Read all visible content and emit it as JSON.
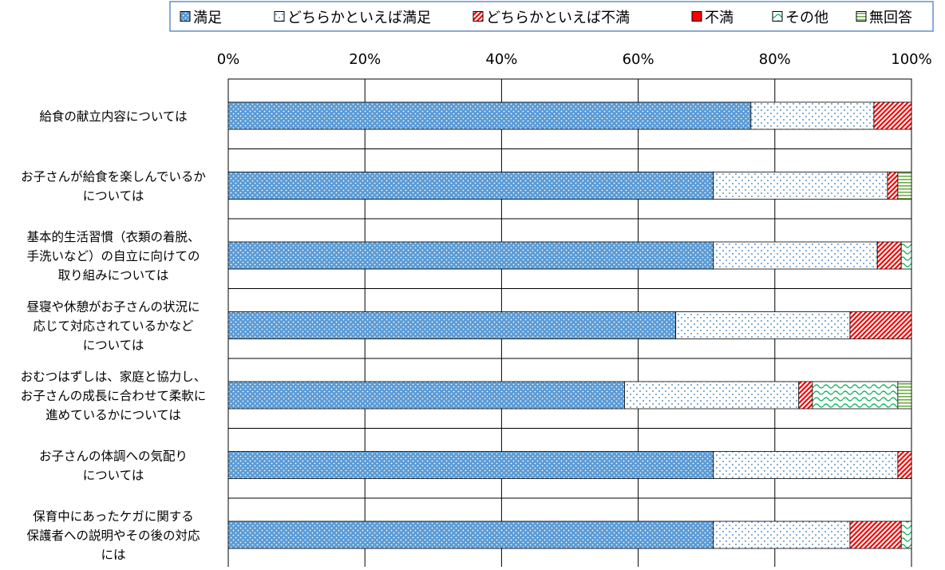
{
  "chart_data": {
    "type": "bar",
    "orientation": "horizontal",
    "stacked": true,
    "percent_scale": true,
    "xlim": [
      0,
      100
    ],
    "x_tick_labels": [
      "0%",
      "20%",
      "40%",
      "60%",
      "80%",
      "100%"
    ],
    "grid": true,
    "legend_position": "top",
    "categories": [
      [
        "給食の献立内容については"
      ],
      [
        "お子さんが給食を楽しんでいるか",
        "については"
      ],
      [
        "基本的生活習慣（衣類の着脱、",
        "手洗いなど）の自立に向けての",
        "取り組みについては"
      ],
      [
        "昼寝や休憩がお子さんの状況に",
        "応じて対応されているかなど",
        "については"
      ],
      [
        "おむつはずしは、家庭と協力し、",
        "お子さんの成長に合わせて柔軟に",
        "進めているかについては"
      ],
      [
        "お子さんの体調への気配り",
        "については"
      ],
      [
        "保育中にあったケガに関する",
        "保護者への説明やその後の対応",
        "には"
      ]
    ],
    "series": [
      {
        "name": "満足",
        "color": "#5B9BD5",
        "pattern": "dots-blue",
        "values": [
          76.5,
          71.0,
          71.0,
          65.5,
          58.0,
          71.0,
          71.0
        ]
      },
      {
        "name": "どちらかといえば満足",
        "color": "#ffffff",
        "pattern": "dots-sparse",
        "values": [
          18.0,
          25.5,
          24.0,
          25.5,
          25.5,
          27.0,
          20.0
        ]
      },
      {
        "name": "どちらかといえば不満",
        "color": "#FF0000",
        "pattern": "diagonal-red",
        "values": [
          5.5,
          1.5,
          3.5,
          9.0,
          2.0,
          2.0,
          7.5
        ]
      },
      {
        "name": "不満",
        "color": "#FF0000",
        "pattern": "solid-red",
        "values": [
          0,
          0,
          0,
          0,
          0,
          0,
          0
        ]
      },
      {
        "name": "その他",
        "color": "#00B050",
        "pattern": "wave-green",
        "values": [
          0,
          0,
          1.5,
          0,
          12.5,
          0,
          1.5
        ]
      },
      {
        "name": "無回答",
        "color": "#70AD47",
        "pattern": "horizontal-green",
        "values": [
          0,
          2.0,
          0,
          0,
          2.0,
          0,
          0
        ]
      }
    ]
  }
}
